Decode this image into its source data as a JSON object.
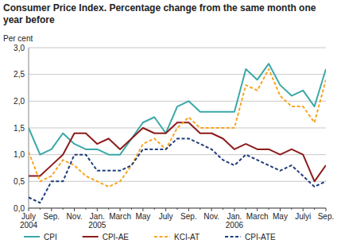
{
  "chart_data": {
    "type": "line",
    "title": "Consumer Price Index. Percentage change from the same month one year before",
    "y_label": "Per cent",
    "categories": [
      "July\n2004",
      null,
      "Sep.",
      null,
      "Nov.",
      null,
      "Jan.\n2005",
      null,
      "March",
      null,
      "May",
      null,
      "July",
      null,
      "Sep.",
      null,
      "Nov.",
      null,
      "Jan.\n2006",
      null,
      "March",
      null,
      "May",
      null,
      "Julyi",
      null,
      "Sep."
    ],
    "series": [
      {
        "name": "CPI",
        "color": "#3aa8a8",
        "line_style": "solid",
        "values": [
          1.5,
          1.0,
          1.1,
          1.4,
          1.2,
          1.1,
          1.1,
          1.0,
          1.0,
          1.3,
          1.6,
          1.7,
          1.4,
          1.9,
          2.0,
          1.8,
          1.8,
          1.8,
          1.8,
          2.6,
          2.4,
          2.7,
          2.3,
          2.1,
          2.2,
          1.9,
          2.6
        ]
      },
      {
        "name": "CPI-AE",
        "color": "#8c1c1c",
        "line_style": "solid",
        "values": [
          0.6,
          0.6,
          0.8,
          1.0,
          1.4,
          1.4,
          1.2,
          1.3,
          1.1,
          1.3,
          1.5,
          1.4,
          1.4,
          1.6,
          1.6,
          1.4,
          1.4,
          1.3,
          1.1,
          1.2,
          1.1,
          1.1,
          1.0,
          1.1,
          1.0,
          0.5,
          0.8
        ]
      },
      {
        "name": "KCI-AT",
        "color": "#f5a623",
        "line_style": "dashed",
        "values": [
          1.05,
          0.5,
          0.6,
          0.9,
          0.8,
          0.6,
          0.5,
          0.4,
          0.5,
          0.8,
          1.2,
          1.3,
          1.1,
          1.5,
          1.7,
          1.5,
          1.5,
          1.5,
          1.5,
          2.3,
          2.2,
          2.6,
          2.1,
          1.9,
          1.9,
          1.6,
          2.4
        ]
      },
      {
        "name": "CPI-ATE",
        "color": "#1f3c7c",
        "line_style": "dashed",
        "values": [
          0.2,
          0.1,
          0.5,
          0.5,
          1.0,
          1.0,
          0.7,
          0.7,
          0.7,
          0.8,
          1.1,
          1.1,
          1.1,
          1.3,
          1.3,
          1.2,
          1.1,
          0.9,
          0.8,
          1.0,
          0.9,
          0.8,
          0.7,
          0.8,
          0.6,
          0.4,
          0.5
        ]
      }
    ],
    "ylim": [
      0,
      3
    ],
    "yticks": [
      {
        "value": 0,
        "label": "0,0"
      },
      {
        "value": 0.5,
        "label": "0,5"
      },
      {
        "value": 1,
        "label": "1,0"
      },
      {
        "value": 1.5,
        "label": "1,5"
      },
      {
        "value": 2,
        "label": "2,0"
      },
      {
        "value": 2.5,
        "label": "2,5"
      },
      {
        "value": 3,
        "label": "3,0"
      }
    ],
    "grid": true,
    "legend": "bottom"
  }
}
